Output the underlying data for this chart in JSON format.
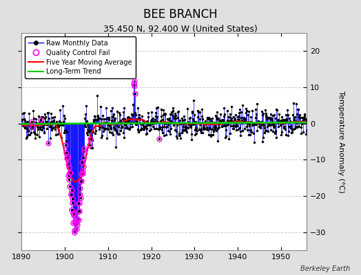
{
  "title": "BEE BRANCH",
  "subtitle": "35.450 N, 92.400 W (United States)",
  "credit": "Berkeley Earth",
  "ylabel": "Temperature Anomaly (°C)",
  "xlim": [
    1890,
    1956
  ],
  "ylim": [
    -35,
    25
  ],
  "yticks": [
    -30,
    -20,
    -10,
    0,
    10,
    20
  ],
  "xticks": [
    1890,
    1900,
    1910,
    1920,
    1930,
    1940,
    1950
  ],
  "figure_bg_color": "#e0e0e0",
  "plot_bg_color": "#ffffff",
  "raw_line_color": "#0000ff",
  "raw_dot_color": "#000000",
  "qc_fail_color": "#ff00ff",
  "moving_avg_color": "#ff0000",
  "trend_color": "#00cc00",
  "grid_color": "#cccccc",
  "start_year": 1890,
  "end_year": 1957,
  "seed": 42
}
